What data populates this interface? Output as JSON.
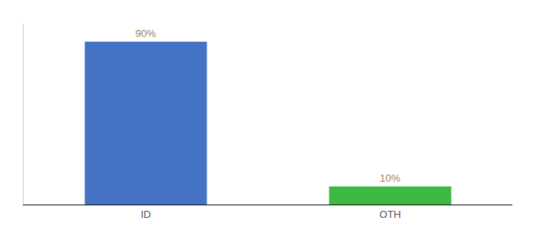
{
  "chart_data": {
    "type": "bar",
    "categories": [
      "ID",
      "OTH"
    ],
    "values": [
      90,
      10
    ],
    "value_labels": [
      "90%",
      "10%"
    ],
    "data_labels": true,
    "colors": [
      "#4472c4",
      "#3cb843"
    ],
    "ylim": [
      0,
      100
    ],
    "grid": false,
    "tick_labels": "x"
  }
}
